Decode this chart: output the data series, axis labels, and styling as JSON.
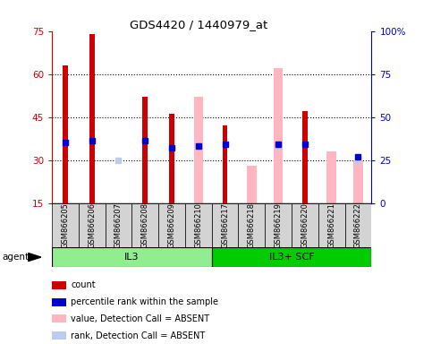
{
  "title": "GDS4420 / 1440979_at",
  "samples": [
    "GSM866205",
    "GSM866206",
    "GSM866207",
    "GSM866208",
    "GSM866209",
    "GSM866210",
    "GSM866217",
    "GSM866218",
    "GSM866219",
    "GSM866220",
    "GSM866221",
    "GSM866222"
  ],
  "groups": [
    {
      "label": "IL3",
      "color": "#90EE90",
      "indices": [
        0,
        1,
        2,
        3,
        4,
        5
      ]
    },
    {
      "label": "IL3+ SCF",
      "color": "#00CC00",
      "indices": [
        6,
        7,
        8,
        9,
        10,
        11
      ]
    }
  ],
  "count_values": [
    63,
    74,
    null,
    52,
    46,
    null,
    42,
    null,
    null,
    47,
    null,
    null
  ],
  "rank_values": [
    35,
    36,
    null,
    36,
    32,
    33,
    34,
    null,
    34,
    34,
    null,
    27
  ],
  "absent_value": [
    null,
    null,
    15,
    null,
    null,
    52,
    null,
    28,
    62,
    null,
    33,
    30
  ],
  "absent_rank": [
    null,
    null,
    25,
    null,
    null,
    33,
    null,
    null,
    33,
    null,
    null,
    25
  ],
  "ylim_left": [
    15,
    75
  ],
  "ylim_right": [
    0,
    100
  ],
  "yticks_left": [
    15,
    30,
    45,
    60,
    75
  ],
  "yticks_right": [
    0,
    25,
    50,
    75,
    100
  ],
  "yticklabels_right": [
    "0",
    "25",
    "50",
    "75",
    "100%"
  ],
  "left_axis_color": "#CC0000",
  "right_axis_color": "#0000CC",
  "count_color": "#CC0000",
  "rank_color": "#0000CC",
  "absent_value_color": "#FFB6C1",
  "absent_rank_color": "#BBCCEE",
  "legend_items": [
    {
      "color": "#CC0000",
      "label": "count"
    },
    {
      "color": "#0000CC",
      "label": "percentile rank within the sample"
    },
    {
      "color": "#FFB6C1",
      "label": "value, Detection Call = ABSENT"
    },
    {
      "color": "#BBCCEE",
      "label": "rank, Detection Call = ABSENT"
    }
  ],
  "header_bg": "#D3D3D3",
  "group_bg_light": "#90EE90",
  "group_bg_dark": "#33CC33"
}
